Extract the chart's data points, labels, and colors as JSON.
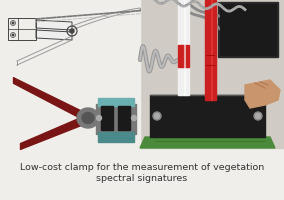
{
  "background_color": "#f0eeeb",
  "caption_line1": "Low-cost clamp for the measurement of vegetation",
  "caption_line2": "spectral signatures",
  "caption_fontsize": 6.8,
  "caption_color": "#333333",
  "fig_width": 2.84,
  "fig_height": 2.0,
  "dpi": 100
}
